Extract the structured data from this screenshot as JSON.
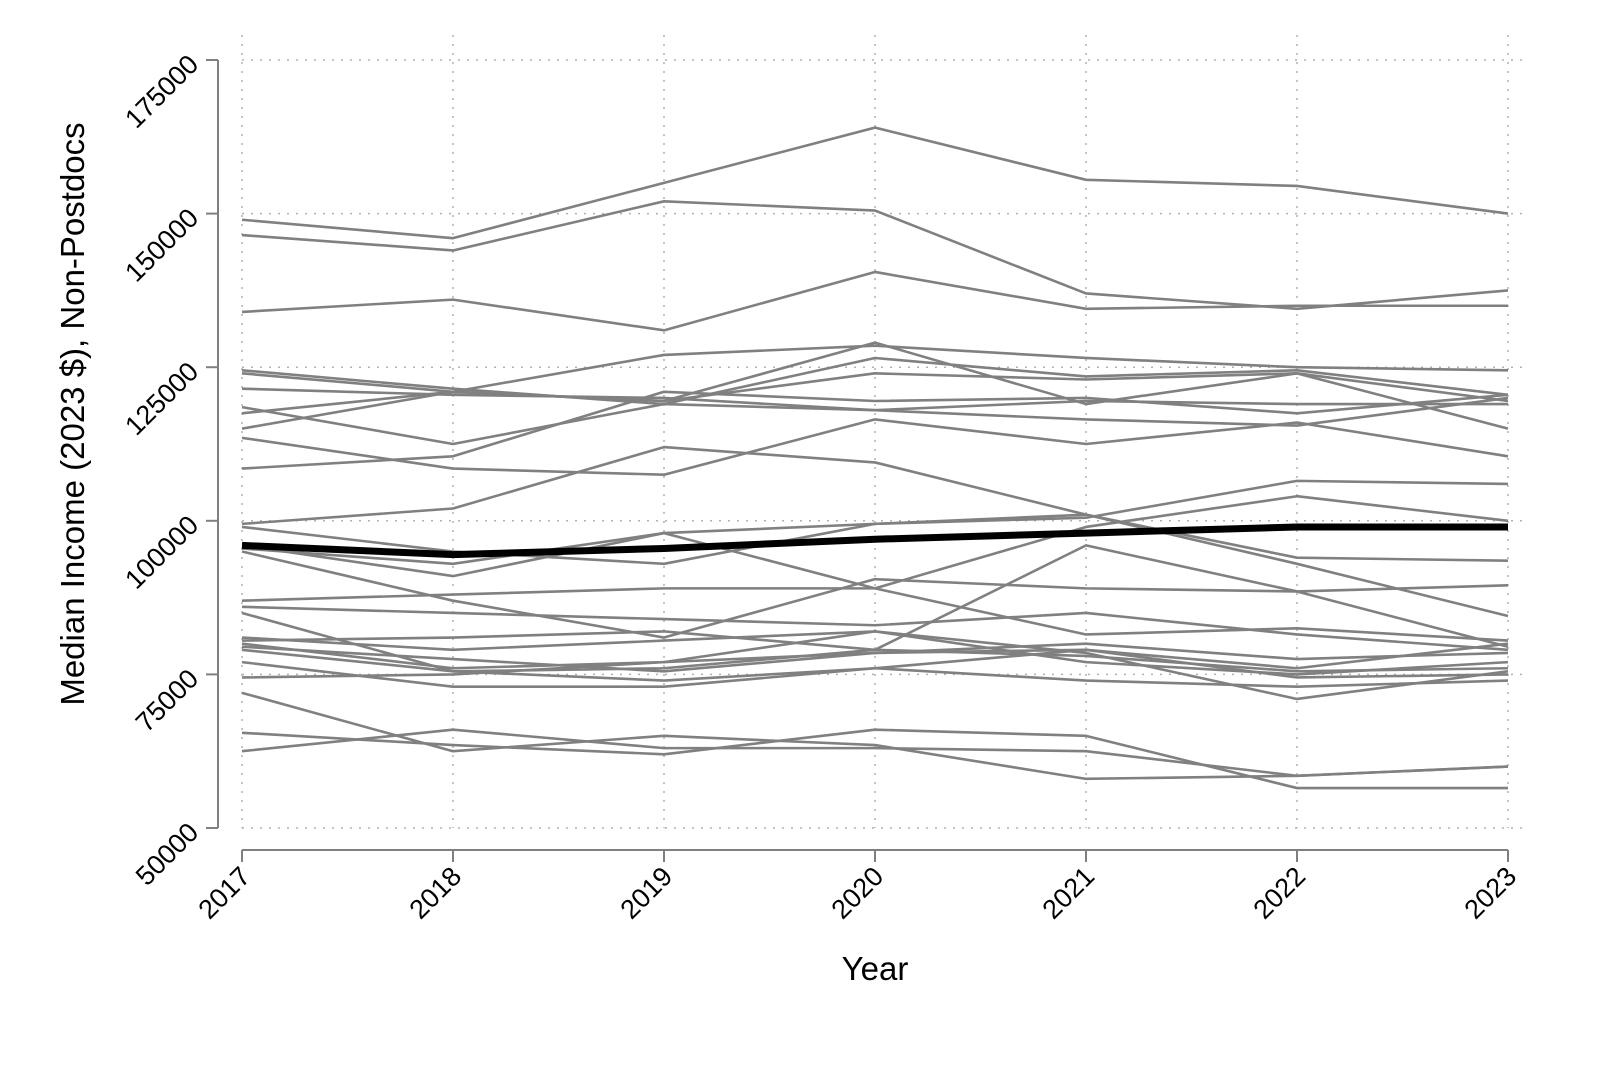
{
  "chart_data": {
    "type": "line",
    "title": "",
    "xlabel": "Year",
    "ylabel": "Median Income (2023 $), Non-Postdocs",
    "x": [
      2017,
      2018,
      2019,
      2020,
      2021,
      2022,
      2023
    ],
    "x_tick_labels": [
      "2017",
      "2018",
      "2019",
      "2020",
      "2021",
      "2022",
      "2023"
    ],
    "y_ticks": [
      50000,
      75000,
      100000,
      125000,
      150000,
      175000
    ],
    "y_tick_labels": [
      "50000",
      "75000",
      "100000",
      "125000",
      "150000",
      "175000"
    ],
    "ylim": [
      50000,
      175000
    ],
    "grid": true,
    "legend": "none",
    "colors": {
      "series": "#808080",
      "highlight": "#000000",
      "grid": "#b0b0b0",
      "axis": "#808080"
    },
    "series": [
      {
        "values": [
          149000,
          146000,
          155000,
          164000,
          155500,
          154500,
          150000
        ]
      },
      {
        "values": [
          146500,
          144000,
          152000,
          150500,
          137000,
          134500,
          137500
        ]
      },
      {
        "values": [
          134000,
          136000,
          131000,
          140500,
          134500,
          135000,
          135000
        ]
      },
      {
        "values": [
          124500,
          121500,
          119000,
          118000,
          116500,
          115500,
          120000
        ]
      },
      {
        "values": [
          124000,
          121000,
          119500,
          129000,
          119000,
          124000,
          115000
        ]
      },
      {
        "values": [
          115000,
          121000,
          127000,
          128500,
          126500,
          125000,
          124500
        ]
      },
      {
        "values": [
          121500,
          120500,
          120000,
          118000,
          119500,
          119000,
          119000
        ]
      },
      {
        "values": [
          118500,
          112500,
          119000,
          126500,
          123500,
          124500,
          120500
        ]
      },
      {
        "values": [
          117500,
          121000,
          119500,
          124000,
          123000,
          124000,
          119500
        ]
      },
      {
        "values": [
          113500,
          108500,
          107500,
          116500,
          112500,
          116000,
          110500
        ]
      },
      {
        "values": [
          108500,
          110500,
          121000,
          119500,
          120000,
          117500,
          120500
        ]
      },
      {
        "values": [
          99500,
          102000,
          112000,
          109500,
          101000,
          94000,
          93500
        ]
      },
      {
        "values": [
          99000,
          95000,
          93000,
          99500,
          100500,
          106500,
          106000
        ]
      },
      {
        "values": [
          96000,
          91000,
          98000,
          89000,
          99000,
          104000,
          100000
        ]
      },
      {
        "values": [
          95500,
          93000,
          98000,
          99500,
          101000,
          93000,
          84500
        ]
      },
      {
        "values": [
          95000,
          87000,
          81000,
          90500,
          89000,
          88500,
          89500
        ]
      },
      {
        "values": [
          96000,
          94500,
          95500,
          97000,
          98000,
          99000,
          99000
        ]
      },
      {
        "values": [
          87000,
          88000,
          89000,
          89000,
          81500,
          82500,
          80500
        ]
      },
      {
        "values": [
          86000,
          85000,
          84000,
          83000,
          85000,
          81500,
          79000
        ]
      },
      {
        "values": [
          81000,
          79000,
          80500,
          82000,
          77000,
          75000,
          77000
        ]
      },
      {
        "values": [
          80500,
          81000,
          82000,
          79000,
          96000,
          88500,
          79500
        ]
      },
      {
        "values": [
          80000,
          76000,
          77000,
          78500,
          80000,
          77500,
          78500
        ]
      },
      {
        "values": [
          79500,
          77500,
          75500,
          78500,
          79000,
          76000,
          80000
        ]
      },
      {
        "values": [
          79000,
          75500,
          76000,
          79000,
          78000,
          75500,
          76000
        ]
      },
      {
        "values": [
          85000,
          75500,
          74000,
          76000,
          79000,
          74500,
          75000
        ]
      },
      {
        "values": [
          77000,
          73000,
          73000,
          76000,
          74000,
          73000,
          74000
        ]
      },
      {
        "values": [
          74500,
          75000,
          77000,
          82000,
          78500,
          71000,
          75500
        ]
      },
      {
        "values": [
          72000,
          62500,
          65000,
          63500,
          58000,
          58500,
          60000
        ]
      },
      {
        "values": [
          65500,
          63500,
          62000,
          66000,
          65000,
          56500,
          56500
        ]
      },
      {
        "values": [
          62500,
          66000,
          63000,
          63000,
          62500,
          58500,
          60000
        ]
      }
    ],
    "highlight_series_index": 16
  }
}
